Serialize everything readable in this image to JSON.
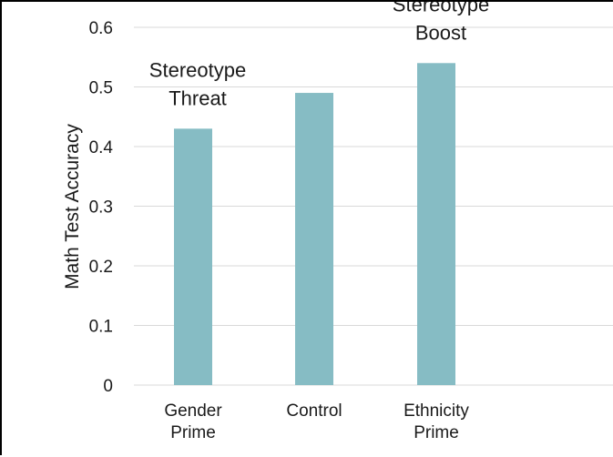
{
  "chart_data": {
    "type": "bar",
    "title": "",
    "xlabel": "",
    "ylabel": "Math Test Accuracy",
    "ylim": [
      0,
      0.6
    ],
    "yticks": [
      "0",
      "0.1",
      "0.2",
      "0.3",
      "0.4",
      "0.5",
      "0.6"
    ],
    "grid": true,
    "legend": "none",
    "bar_color": "#86bcc4",
    "categories": [
      [
        "Gender",
        "Prime"
      ],
      [
        "Control"
      ],
      [
        "Ethnicity",
        "Prime"
      ]
    ],
    "values": [
      0.43,
      0.49,
      0.54
    ],
    "annotations": [
      {
        "category_index": 0,
        "lines": [
          "Stereotype",
          "Threat"
        ]
      },
      {
        "category_index": 2,
        "lines": [
          "Stereotype",
          "Boost"
        ]
      }
    ]
  }
}
